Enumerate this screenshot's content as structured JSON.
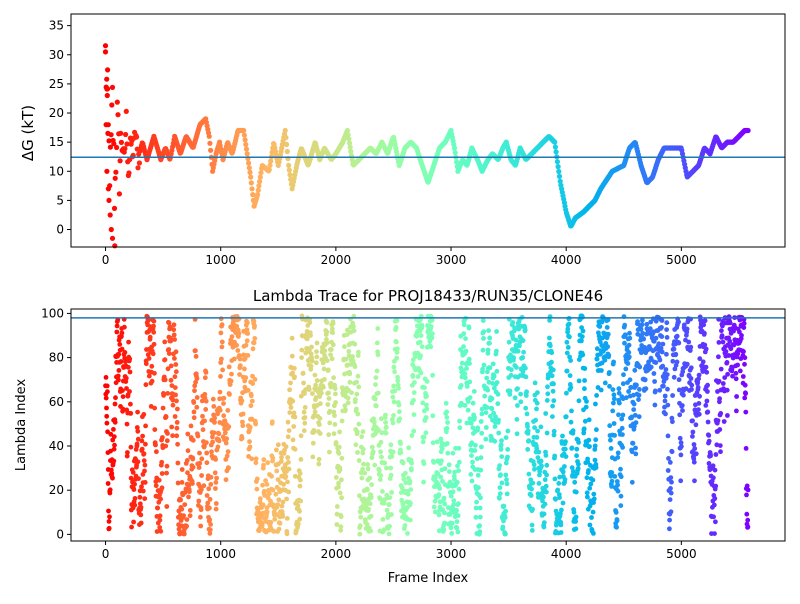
{
  "chart_data": [
    {
      "type": "scatter",
      "title": "",
      "xlabel": "",
      "ylabel": "ΔG (kT)",
      "xlim": [
        -300,
        5900
      ],
      "ylim": [
        -3,
        37
      ],
      "xticks": [
        0,
        1000,
        2000,
        3000,
        4000,
        5000
      ],
      "yticks": [
        0,
        5,
        10,
        15,
        20,
        25,
        30,
        35
      ],
      "hline": 12.4,
      "hline_color": "#1f77b4",
      "colormap": "rainbow",
      "trace_knots": [
        [
          0,
          30
        ],
        [
          20,
          18
        ],
        [
          40,
          9
        ],
        [
          60,
          22
        ],
        [
          80,
          5
        ],
        [
          100,
          20
        ],
        [
          120,
          10
        ],
        [
          140,
          17
        ],
        [
          160,
          11
        ],
        [
          180,
          19
        ],
        [
          200,
          9
        ],
        [
          220,
          15
        ],
        [
          240,
          13
        ],
        [
          260,
          17
        ],
        [
          280,
          12
        ],
        [
          320,
          15
        ],
        [
          360,
          12
        ],
        [
          420,
          16
        ],
        [
          480,
          12
        ],
        [
          520,
          14
        ],
        [
          560,
          12
        ],
        [
          600,
          16
        ],
        [
          650,
          13
        ],
        [
          700,
          16
        ],
        [
          760,
          14
        ],
        [
          820,
          18
        ],
        [
          870,
          19
        ],
        [
          900,
          16
        ],
        [
          930,
          10
        ],
        [
          960,
          13
        ],
        [
          990,
          15
        ],
        [
          1020,
          12
        ],
        [
          1060,
          15
        ],
        [
          1100,
          13
        ],
        [
          1150,
          17
        ],
        [
          1200,
          17
        ],
        [
          1230,
          13
        ],
        [
          1260,
          9
        ],
        [
          1290,
          4
        ],
        [
          1320,
          6
        ],
        [
          1360,
          11
        ],
        [
          1420,
          10
        ],
        [
          1460,
          15
        ],
        [
          1500,
          11
        ],
        [
          1560,
          17
        ],
        [
          1590,
          11
        ],
        [
          1620,
          7
        ],
        [
          1660,
          11
        ],
        [
          1700,
          14
        ],
        [
          1760,
          11
        ],
        [
          1820,
          15
        ],
        [
          1860,
          12
        ],
        [
          1900,
          14
        ],
        [
          1960,
          12
        ],
        [
          2000,
          13
        ],
        [
          2060,
          15
        ],
        [
          2100,
          17
        ],
        [
          2150,
          11
        ],
        [
          2200,
          12
        ],
        [
          2250,
          13
        ],
        [
          2300,
          14
        ],
        [
          2350,
          13
        ],
        [
          2400,
          15
        ],
        [
          2450,
          13
        ],
        [
          2500,
          16
        ],
        [
          2550,
          11
        ],
        [
          2600,
          14
        ],
        [
          2650,
          15
        ],
        [
          2700,
          14
        ],
        [
          2750,
          11
        ],
        [
          2800,
          8
        ],
        [
          2850,
          11
        ],
        [
          2900,
          14
        ],
        [
          2950,
          15
        ],
        [
          3000,
          17
        ],
        [
          3030,
          14
        ],
        [
          3060,
          10
        ],
        [
          3100,
          12
        ],
        [
          3140,
          11
        ],
        [
          3180,
          14
        ],
        [
          3230,
          12
        ],
        [
          3270,
          10
        ],
        [
          3320,
          12
        ],
        [
          3360,
          13
        ],
        [
          3410,
          12
        ],
        [
          3450,
          14
        ],
        [
          3480,
          15
        ],
        [
          3520,
          12
        ],
        [
          3560,
          11
        ],
        [
          3600,
          14
        ],
        [
          3650,
          12
        ],
        [
          3700,
          13
        ],
        [
          3750,
          14
        ],
        [
          3800,
          15
        ],
        [
          3850,
          16
        ],
        [
          3900,
          15
        ],
        [
          3950,
          8
        ],
        [
          4000,
          3
        ],
        [
          4040,
          0.5
        ],
        [
          4080,
          2
        ],
        [
          4150,
          3
        ],
        [
          4250,
          5
        ],
        [
          4300,
          7
        ],
        [
          4400,
          10
        ],
        [
          4500,
          11
        ],
        [
          4550,
          14
        ],
        [
          4600,
          15
        ],
        [
          4650,
          11
        ],
        [
          4700,
          8
        ],
        [
          4750,
          9
        ],
        [
          4800,
          12
        ],
        [
          4850,
          14
        ],
        [
          4900,
          14
        ],
        [
          4950,
          14
        ],
        [
          5000,
          14
        ],
        [
          5050,
          9
        ],
        [
          5100,
          10
        ],
        [
          5150,
          11
        ],
        [
          5200,
          14
        ],
        [
          5250,
          13
        ],
        [
          5300,
          16
        ],
        [
          5350,
          14
        ],
        [
          5400,
          15
        ],
        [
          5450,
          15
        ],
        [
          5500,
          16
        ],
        [
          5550,
          17
        ],
        [
          5580,
          17
        ]
      ]
    },
    {
      "type": "scatter",
      "title": "Lambda Trace for PROJ18433/RUN35/CLONE46",
      "xlabel": "Frame Index",
      "ylabel": "Lambda Index",
      "xlim": [
        -300,
        5900
      ],
      "ylim": [
        -3,
        102
      ],
      "xticks": [
        0,
        1000,
        2000,
        3000,
        4000,
        5000
      ],
      "yticks": [
        0,
        20,
        40,
        60,
        80,
        100
      ],
      "hline": 98,
      "hline_color": "#1f77b4",
      "colormap": "rainbow"
    }
  ]
}
